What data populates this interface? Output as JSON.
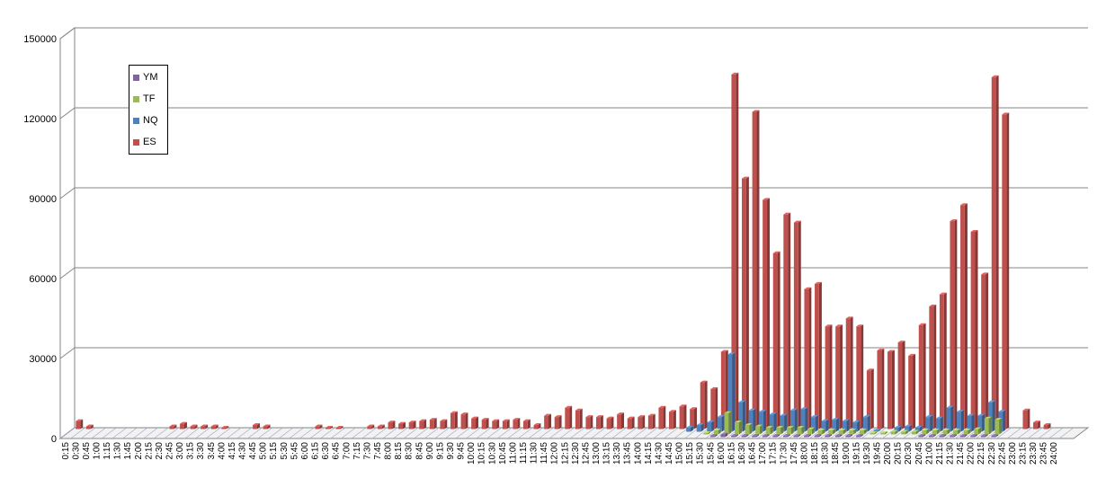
{
  "chart_data": {
    "type": "bar",
    "title": "",
    "xlabel": "",
    "ylabel": "",
    "ylim": [
      0,
      150000
    ],
    "yticks": [
      0,
      30000,
      60000,
      90000,
      120000,
      150000
    ],
    "grid": true,
    "legend_position": "top-left",
    "categories": [
      "0:15",
      "0:30",
      "0:45",
      "1:00",
      "1:15",
      "1:30",
      "1:45",
      "2:00",
      "2:15",
      "2:30",
      "2:45",
      "3:00",
      "3:15",
      "3:30",
      "3:45",
      "4:00",
      "4:15",
      "4:30",
      "4:45",
      "5:00",
      "5:15",
      "5:30",
      "5:45",
      "6:00",
      "6:15",
      "6:30",
      "6:45",
      "7:00",
      "7:15",
      "7:30",
      "7:45",
      "8:00",
      "8:15",
      "8:30",
      "8:45",
      "9:00",
      "9:15",
      "9:30",
      "9:45",
      "10:00",
      "10:15",
      "10:30",
      "10:45",
      "11:00",
      "11:15",
      "11:30",
      "11:45",
      "12:00",
      "12:15",
      "12:30",
      "12:45",
      "13:00",
      "13:15",
      "13:30",
      "13:45",
      "14:00",
      "14:15",
      "14:30",
      "14:45",
      "15:00",
      "15:15",
      "15:30",
      "15:45",
      "16:00",
      "16:15",
      "16:30",
      "16:45",
      "17:00",
      "17:15",
      "17:30",
      "17:45",
      "18:00",
      "18:15",
      "18:30",
      "18:45",
      "19:00",
      "19:15",
      "19:30",
      "19:45",
      "20:00",
      "20:15",
      "20:30",
      "20:45",
      "21:00",
      "21:15",
      "21:30",
      "21:45",
      "22:00",
      "22:15",
      "22:30",
      "22:45",
      "23:00",
      "23:15",
      "23:30",
      "23:45",
      "24:00"
    ],
    "series": [
      {
        "name": "ES",
        "color": "#c0504d",
        "values": [
          3000,
          1000,
          0,
          0,
          0,
          0,
          0,
          0,
          0,
          1000,
          2000,
          1000,
          1000,
          1000,
          500,
          0,
          0,
          1500,
          1000,
          0,
          0,
          0,
          0,
          1000,
          500,
          500,
          0,
          0,
          1000,
          1000,
          2500,
          2000,
          2500,
          3000,
          3500,
          3000,
          6000,
          5500,
          4000,
          3500,
          3000,
          3000,
          3500,
          3000,
          1500,
          5000,
          4500,
          8000,
          7000,
          4500,
          4500,
          4000,
          5500,
          4000,
          4500,
          5000,
          8000,
          6500,
          8500,
          7500,
          17500,
          15000,
          29000,
          133000,
          94000,
          119000,
          86000,
          66000,
          80500,
          77500,
          52500,
          54500,
          38500,
          38500,
          41500,
          38500,
          22000,
          29500,
          29000,
          32500,
          27500,
          39000,
          46000,
          50500,
          78000,
          84000,
          74000,
          58000,
          132000,
          118000,
          0,
          7000,
          2500,
          1500,
          0,
          0
        ]
      },
      {
        "name": "NQ",
        "color": "#4f81bd",
        "values": [
          0,
          0,
          0,
          0,
          0,
          0,
          0,
          0,
          0,
          0,
          0,
          0,
          0,
          0,
          0,
          0,
          0,
          0,
          0,
          0,
          0,
          0,
          0,
          0,
          0,
          0,
          0,
          0,
          0,
          0,
          0,
          0,
          0,
          0,
          0,
          0,
          0,
          0,
          0,
          0,
          0,
          0,
          0,
          0,
          0,
          0,
          0,
          0,
          0,
          0,
          0,
          0,
          0,
          0,
          0,
          0,
          0,
          0,
          0,
          1500,
          2500,
          3500,
          5500,
          29000,
          11000,
          8000,
          7500,
          6500,
          6000,
          8000,
          8500,
          5500,
          4000,
          4500,
          4000,
          3500,
          5500,
          500,
          0,
          1500,
          2000,
          1500,
          5500,
          5000,
          9000,
          7500,
          6000,
          6000,
          11000,
          7500,
          0,
          0,
          0,
          0,
          0,
          0
        ]
      },
      {
        "name": "TF",
        "color": "#9bbb59",
        "values": [
          0,
          0,
          0,
          0,
          0,
          0,
          0,
          0,
          0,
          0,
          0,
          0,
          0,
          0,
          0,
          0,
          0,
          0,
          0,
          0,
          0,
          0,
          0,
          0,
          0,
          0,
          0,
          0,
          0,
          0,
          0,
          0,
          0,
          0,
          0,
          0,
          0,
          0,
          0,
          0,
          0,
          0,
          0,
          0,
          0,
          0,
          0,
          0,
          0,
          0,
          0,
          0,
          0,
          0,
          0,
          0,
          0,
          0,
          0,
          0,
          0,
          500,
          1500,
          8000,
          4500,
          3500,
          3000,
          2500,
          2500,
          2500,
          2500,
          2000,
          1500,
          1500,
          1500,
          1500,
          1500,
          500,
          500,
          1000,
          1000,
          1000,
          1500,
          1500,
          1500,
          1500,
          1500,
          2000,
          6000,
          5500,
          0,
          0,
          0,
          0,
          0,
          0
        ]
      },
      {
        "name": "YM",
        "color": "#8064a2",
        "values": [
          0,
          0,
          0,
          0,
          0,
          0,
          0,
          0,
          0,
          0,
          0,
          0,
          0,
          0,
          0,
          0,
          0,
          0,
          0,
          0,
          0,
          0,
          0,
          0,
          0,
          0,
          0,
          0,
          0,
          0,
          0,
          0,
          0,
          0,
          0,
          0,
          0,
          0,
          0,
          0,
          0,
          0,
          0,
          0,
          0,
          0,
          0,
          0,
          0,
          0,
          0,
          0,
          0,
          0,
          0,
          0,
          0,
          0,
          0,
          0,
          0,
          0,
          500,
          1000,
          500,
          500,
          500,
          500,
          500,
          500,
          500,
          500,
          500,
          500,
          500,
          500,
          500,
          0,
          0,
          0,
          0,
          0,
          500,
          500,
          500,
          500,
          500,
          500,
          500,
          500,
          0,
          0,
          0,
          0,
          0,
          0
        ]
      }
    ],
    "legend": [
      "YM",
      "TF",
      "NQ",
      "ES"
    ]
  }
}
